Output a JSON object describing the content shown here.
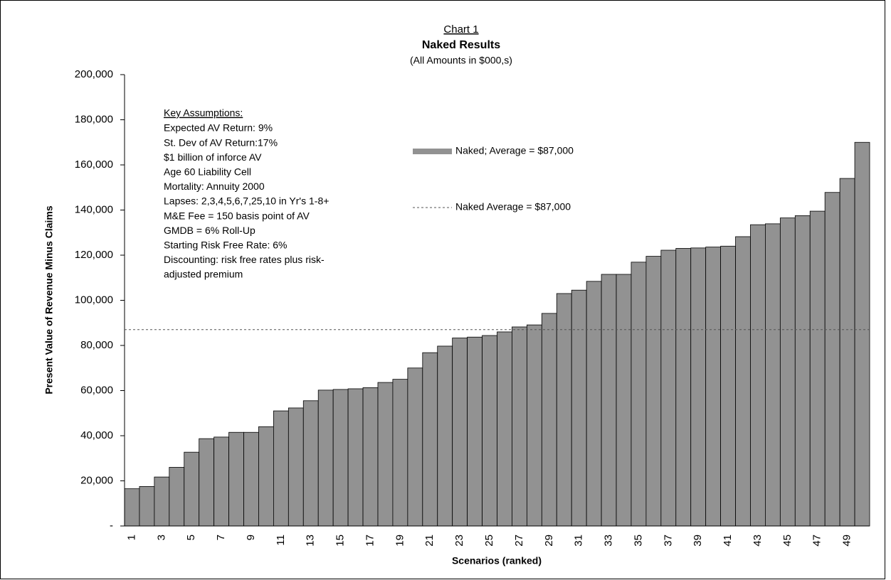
{
  "chart_data": {
    "type": "bar",
    "title": "Chart 1",
    "subtitle": "Naked Results",
    "note": "(All Amounts in $000,s)",
    "x_label": "Scenarios (ranked)",
    "y_label": "Present Value of Revenue Minus Claims",
    "categories": [
      "1",
      null,
      "3",
      null,
      "5",
      null,
      "7",
      null,
      "9",
      null,
      "11",
      null,
      "13",
      null,
      "15",
      null,
      "17",
      null,
      "19",
      null,
      "21",
      null,
      "23",
      null,
      "25",
      null,
      "27",
      null,
      "29",
      null,
      "31",
      null,
      "33",
      null,
      "35",
      null,
      "37",
      null,
      "39",
      null,
      "41",
      null,
      "43",
      null,
      "45",
      null,
      "47",
      null,
      "49",
      null
    ],
    "series": [
      {
        "name": "Naked; Average = $87,000",
        "color": "#929292",
        "values": [
          16500,
          17500,
          21700,
          26000,
          32700,
          38700,
          39400,
          41500,
          41500,
          44000,
          51000,
          52300,
          55500,
          60200,
          60500,
          60800,
          61300,
          63600,
          65000,
          70000,
          76800,
          79700,
          83300,
          83700,
          84400,
          86000,
          88200,
          89100,
          94200,
          103000,
          104500,
          108400,
          111500,
          111500,
          116900,
          119500,
          122200,
          123000,
          123200,
          123600,
          124000,
          128200,
          133500,
          133900,
          136500,
          137500,
          139500,
          147800,
          154000,
          170000
        ]
      }
    ],
    "reference_line": {
      "name": "Naked Average = $87,000",
      "value": 87000,
      "color": "#555555"
    },
    "ylim": [
      0,
      200000
    ],
    "yticks": [
      {
        "value": 0,
        "label": "-"
      },
      {
        "value": 20000,
        "label": "20,000"
      },
      {
        "value": 40000,
        "label": "40,000"
      },
      {
        "value": 60000,
        "label": "60,000"
      },
      {
        "value": 80000,
        "label": "80,000"
      },
      {
        "value": 100000,
        "label": "100,000"
      },
      {
        "value": 120000,
        "label": "120,000"
      },
      {
        "value": 140000,
        "label": "140,000"
      },
      {
        "value": 160000,
        "label": "160,000"
      },
      {
        "value": 180000,
        "label": "180,000"
      },
      {
        "value": 200000,
        "label": "200,000"
      }
    ],
    "annotation": {
      "title": "Key Assumptions:",
      "lines": [
        "Expected AV Return: 9%",
        "St. Dev of AV Return:17%",
        "$1 billion of inforce AV",
        "Age 60 Liability Cell",
        "Mortality: Annuity 2000",
        "Lapses: 2,3,4,5,6,7,25,10 in Yr's 1-8+",
        "M&E Fee = 150 basis point of AV",
        "GMDB = 6% Roll-Up",
        "Starting Risk Free Rate: 6%",
        "Discounting: risk free rates plus risk-",
        "adjusted premium"
      ]
    },
    "grid": false
  }
}
